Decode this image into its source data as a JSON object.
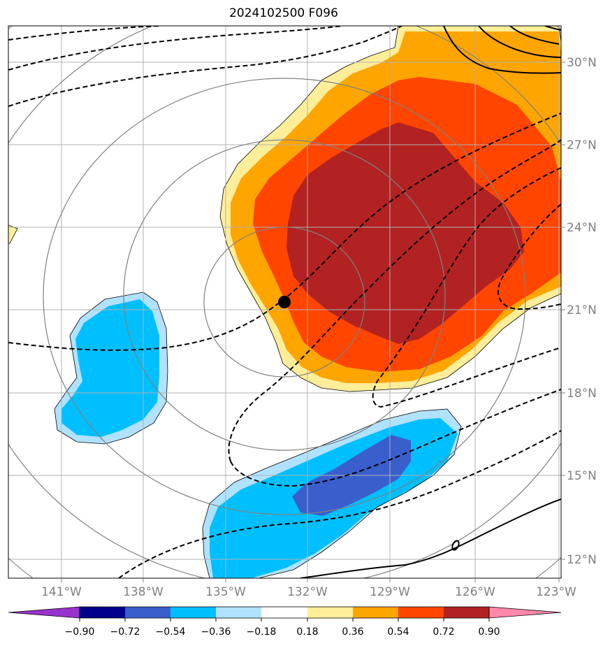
{
  "title": "2024102500 F096",
  "colors": {
    "background": "#ffffff",
    "grid": "#b0b0b0",
    "range_rings": "#808080",
    "contour": "#000000",
    "anom_0_18_0_36": "#ffee99",
    "anom_0_36_0_54": "#ffa500",
    "anom_0_54_0_72": "#ff4500",
    "anom_0_72_0_90": "#b22222",
    "anom_neg_0_36_neg_0_54": "#00bfff",
    "anom_neg_0_54_neg_0_72": "#3a5fcd",
    "anom_neg_0_18_neg_0_36": "#b0e2ff",
    "center_marker": "#000000"
  },
  "map": {
    "longitude_labels": [
      "141°W",
      "138°W",
      "135°W",
      "132°W",
      "129°W",
      "126°W",
      "123°W"
    ],
    "latitude_labels": [
      "30°N",
      "27°N",
      "24°N",
      "21°N",
      "18°N",
      "15°N",
      "12°N"
    ],
    "center_marker": "storm-center-dot",
    "range_rings_count": 5,
    "contour_style": {
      "negative": "dashed",
      "positive": "solid"
    }
  },
  "colorbar": {
    "ticks": [
      "−0.90",
      "−0.72",
      "−0.54",
      "−0.36",
      "−0.18",
      "0.18",
      "0.36",
      "0.54",
      "0.72",
      "0.90"
    ],
    "segment_colors": [
      "#9932cc",
      "#00008b",
      "#3a5fcd",
      "#00bfff",
      "#b0e2ff",
      "#ffffff",
      "#ffee99",
      "#ffa500",
      "#ff4500",
      "#b22222",
      "#ff88aa"
    ],
    "extend": "both"
  }
}
